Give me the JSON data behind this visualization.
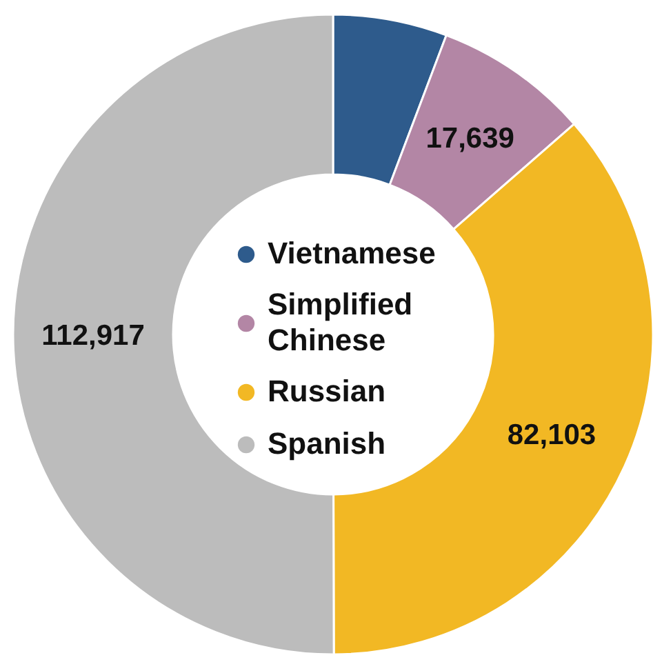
{
  "chart_data": {
    "type": "donut",
    "categories": [
      "Vietnamese",
      "Simplified Chinese",
      "Russian",
      "Spanish"
    ],
    "values": [
      13000,
      17639,
      82103,
      112917
    ],
    "colors": [
      "#2e5b8c",
      "#b386a5",
      "#f2b824",
      "#bcbcbc"
    ],
    "value_labels": [
      null,
      "17,639",
      "82,103",
      "112,917"
    ],
    "legend": "center",
    "marker": "circle"
  }
}
